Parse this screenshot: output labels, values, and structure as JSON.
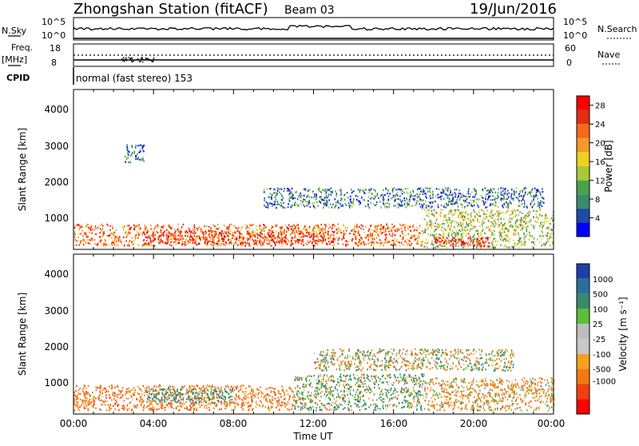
{
  "header": {
    "station_title": "Zhongshan Station (fitACF)",
    "beam": "Beam 03",
    "date": "19/Jun/2016"
  },
  "strips": {
    "nsky_label": "N.Sky",
    "nsky_ticks": [
      "10^5",
      "10^0"
    ],
    "nsearch_label": "N.Search",
    "nsearch_ticks": [
      "10^5",
      "10^0"
    ],
    "freq_label": "Freq.",
    "freq_unit": "[MHz]",
    "freq_ticks": [
      "18",
      "8"
    ],
    "nave_label": "Nave",
    "nave_ticks": [
      "60",
      "0"
    ],
    "cpid_label": "CPID",
    "cpid_value": "normal (fast stereo) 153"
  },
  "power_panel": {
    "ylabel": "Slant Range [km]",
    "yticks": [
      "4000",
      "3000",
      "2000",
      "1000"
    ],
    "colorbar_label": "Power [dB]",
    "colorbar_ticks": [
      "28",
      "24",
      "20",
      "16",
      "12",
      "8",
      "4"
    ]
  },
  "velocity_panel": {
    "ylabel": "Slant Range [km]",
    "yticks": [
      "4000",
      "3000",
      "2000",
      "1000"
    ],
    "colorbar_label": "Velocity [m s⁻¹]",
    "colorbar_ticks": [
      "1000",
      "500",
      "100",
      "25",
      "-25",
      "-100",
      "-500",
      "-1000"
    ]
  },
  "x_axis": {
    "label": "Time UT",
    "ticks": [
      "00:00",
      "04:00",
      "08:00",
      "12:00",
      "16:00",
      "20:00",
      "00:00"
    ]
  },
  "colors": {
    "power_scale": [
      "#0000ff",
      "#1d4ca5",
      "#3b8a6e",
      "#4aa34a",
      "#a8c93a",
      "#f0d020",
      "#f59a2a",
      "#f46a1a",
      "#e03010",
      "#ff0000"
    ],
    "velocity_scale": [
      "#1f3fa8",
      "#2e6f9a",
      "#3a8a6a",
      "#5bbf3a",
      "#bdbdbd",
      "#c8c8c8",
      "#f5a020",
      "#f07a10",
      "#f04010",
      "#ff0000"
    ]
  },
  "chart_data": [
    {
      "type": "heatmap",
      "title": "Power",
      "xlabel": "Time UT",
      "ylabel": "Slant Range [km]",
      "xlim": [
        "00:00",
        "24:00"
      ],
      "ylim": [
        180,
        4600
      ],
      "colorbar": {
        "label": "Power [dB]",
        "range": [
          0,
          30
        ],
        "ticks": [
          4,
          8,
          12,
          16,
          20,
          24,
          28
        ]
      },
      "echo_regions": [
        {
          "time_start": 0.0,
          "time_end": 17.5,
          "range_start": 300,
          "range_end": 900,
          "typical_power_db": 22
        },
        {
          "time_start": 3.5,
          "time_end": 13.0,
          "range_start": 350,
          "range_end": 700,
          "typical_power_db": 26
        },
        {
          "time_start": 17.5,
          "time_end": 24.0,
          "range_start": 250,
          "range_end": 1300,
          "typical_power_db": 14
        },
        {
          "time_start": 18.0,
          "time_end": 21.0,
          "range_start": 280,
          "range_end": 550,
          "typical_power_db": 28
        },
        {
          "time_start": 9.5,
          "time_end": 23.5,
          "range_start": 1350,
          "range_end": 1900,
          "typical_power_db": 7
        },
        {
          "time_start": 2.5,
          "time_end": 3.5,
          "range_start": 2600,
          "range_end": 3100,
          "typical_power_db": 6
        }
      ]
    },
    {
      "type": "heatmap",
      "title": "Velocity",
      "xlabel": "Time UT",
      "ylabel": "Slant Range [km]",
      "xlim": [
        "00:00",
        "24:00"
      ],
      "ylim": [
        180,
        4600
      ],
      "colorbar": {
        "label": "Velocity [m s⁻¹]",
        "range": [
          -1000,
          1000
        ],
        "ticks": [
          1000,
          500,
          100,
          25,
          -25,
          -100,
          -500,
          -1000
        ]
      },
      "echo_regions": [
        {
          "time_start": 0.0,
          "time_end": 11.0,
          "range_start": 300,
          "range_end": 1000,
          "typical_velocity": -300
        },
        {
          "time_start": 3.5,
          "time_end": 8.0,
          "range_start": 500,
          "range_end": 900,
          "typical_velocity": 300
        },
        {
          "time_start": 11.0,
          "time_end": 17.5,
          "range_start": 300,
          "range_end": 1300,
          "typical_velocity": 100
        },
        {
          "time_start": 17.5,
          "time_end": 24.0,
          "range_start": 300,
          "range_end": 1200,
          "typical_velocity": -150
        },
        {
          "time_start": 12.0,
          "time_end": 22.0,
          "range_start": 1400,
          "range_end": 2000,
          "typical_velocity": 0
        }
      ]
    }
  ]
}
